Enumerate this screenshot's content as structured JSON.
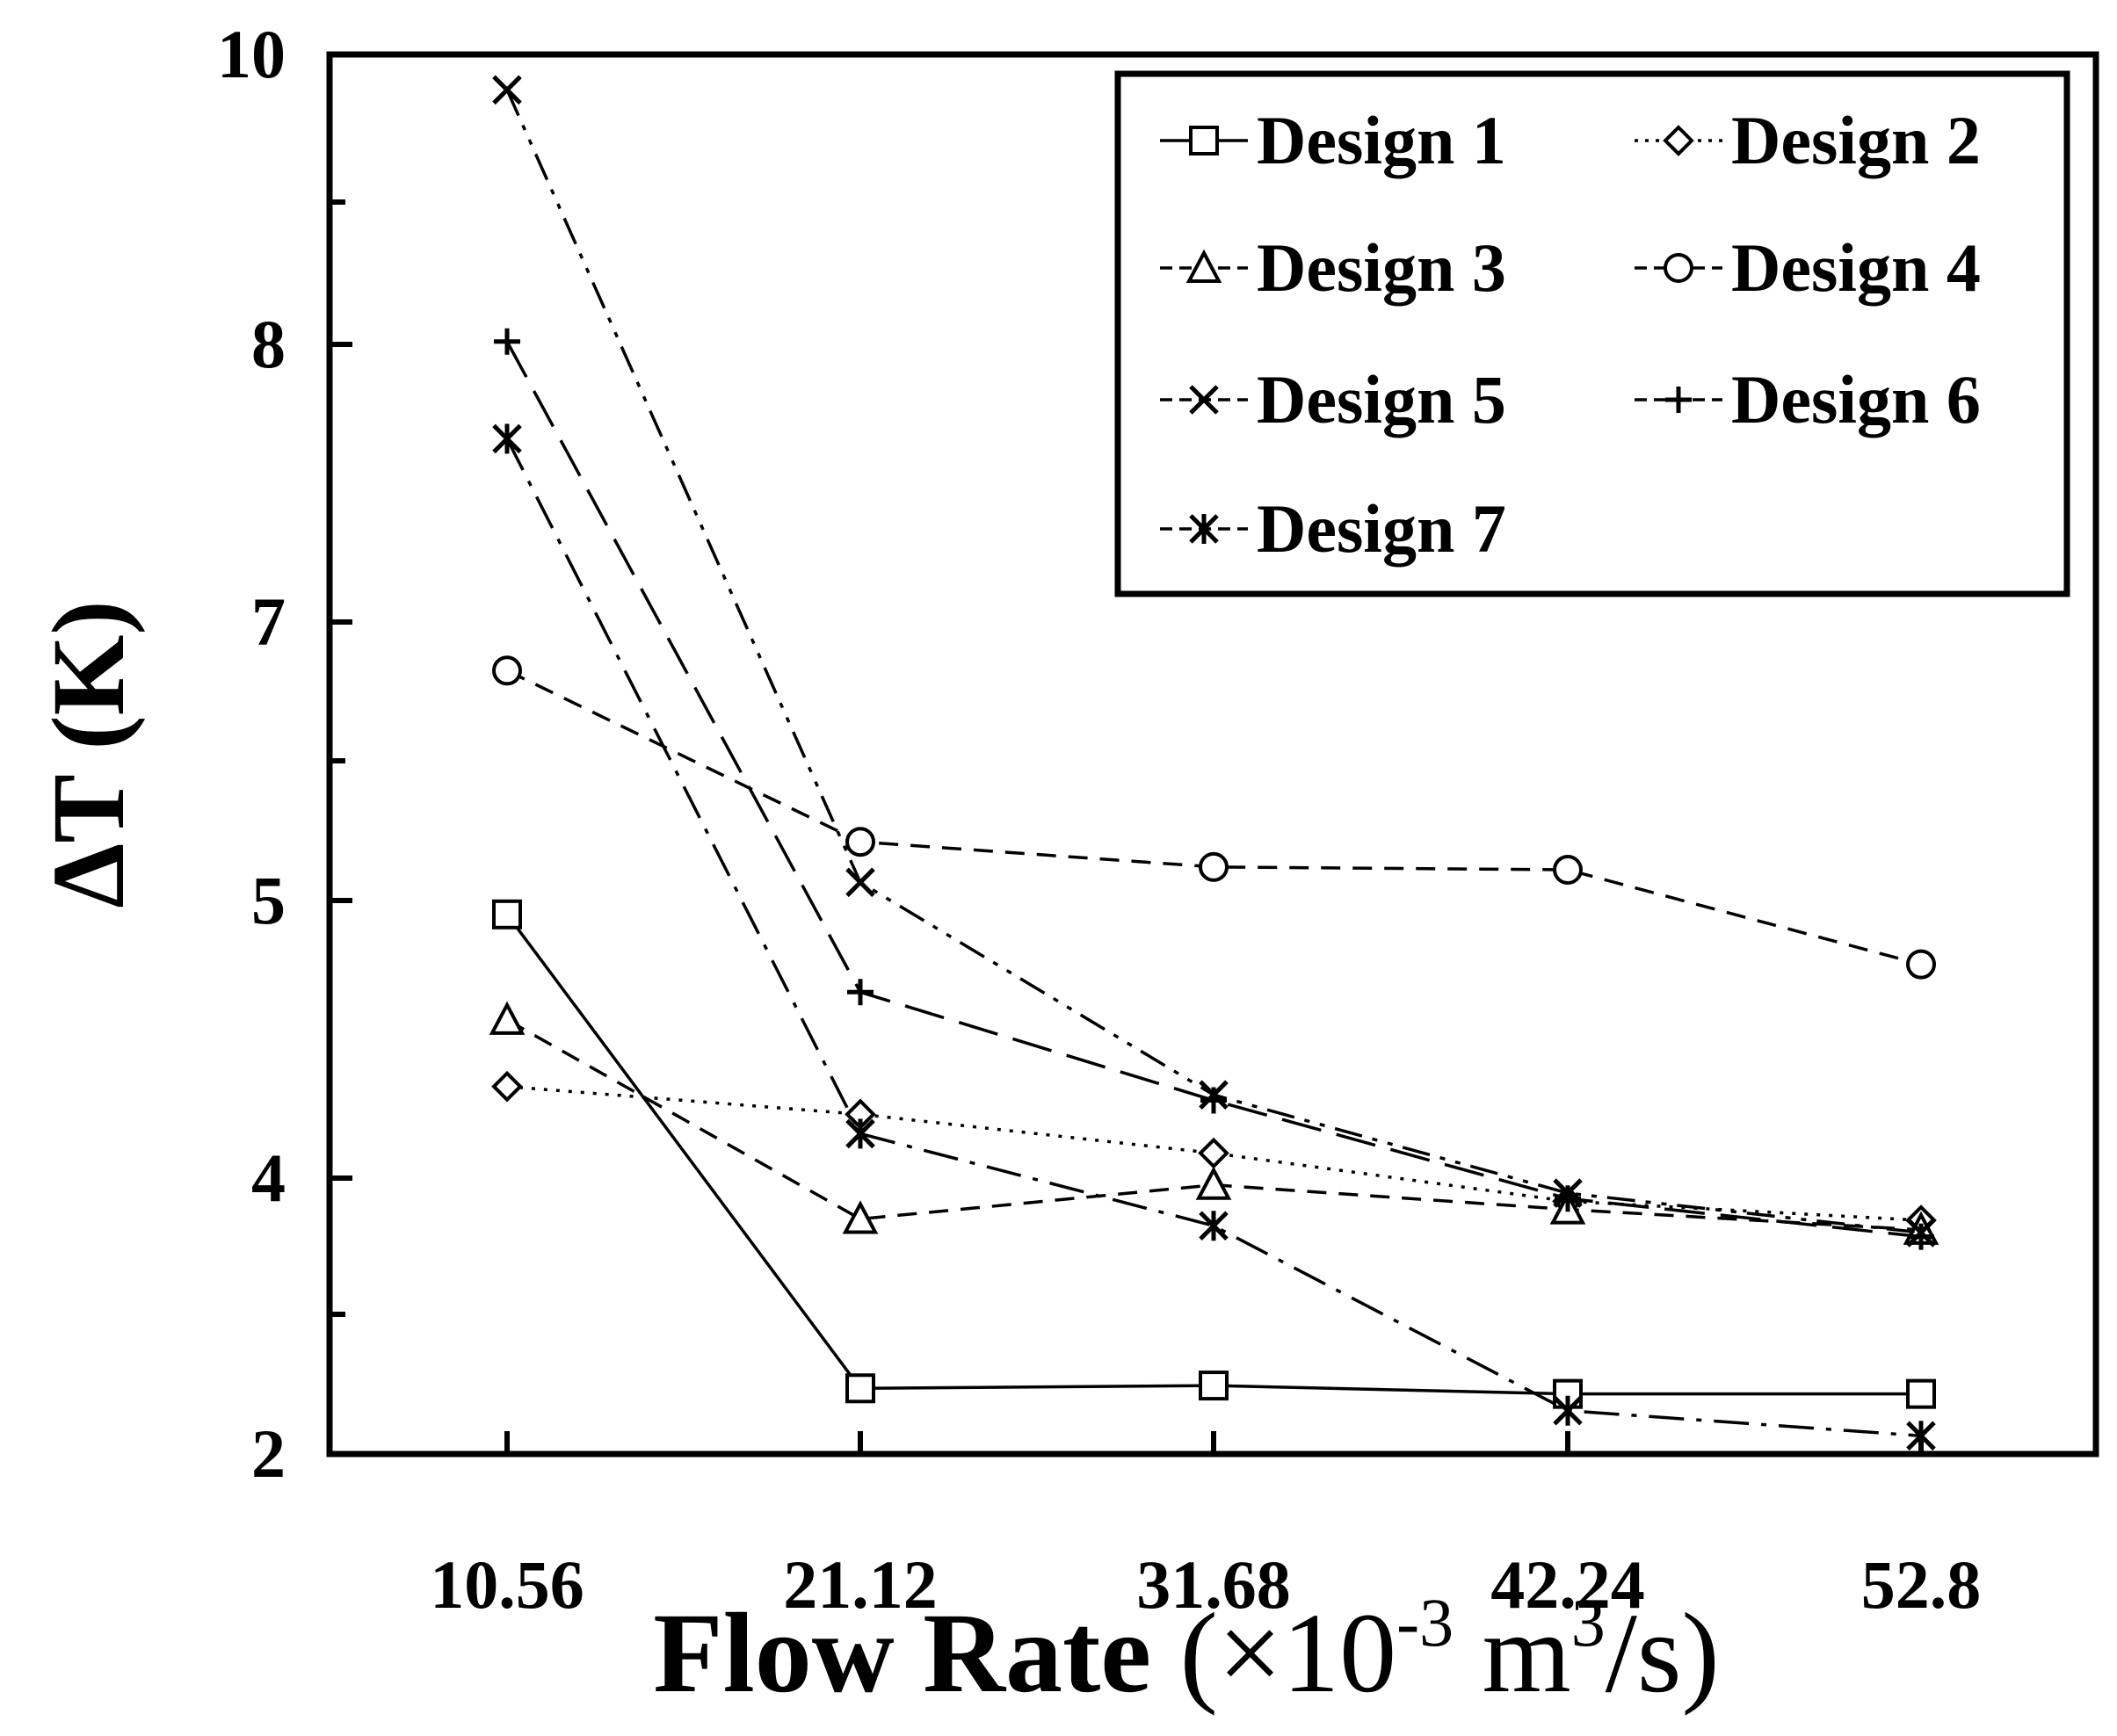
{
  "chart_data": {
    "type": "line",
    "title": "",
    "xlabel": "Flow Rate (×10⁻³ m³/s)",
    "xlabel_parts": {
      "main": "Flow Rate",
      "unit_open": " (×10",
      "unit_exp1": "-3",
      "unit_mid": " m",
      "unit_exp2": "3",
      "unit_close": "/s)"
    },
    "ylabel": "ΔT (K)",
    "categories": [
      "10.56",
      "21.12",
      "31.68",
      "42.24",
      "52.8"
    ],
    "y_ticks": [
      "10",
      "8",
      "7",
      "5",
      "4",
      "2"
    ],
    "y_tick_values": [
      10,
      8,
      7,
      5,
      4,
      2
    ],
    "ylim": [
      2,
      10
    ],
    "legend_position": "top-right",
    "series": [
      {
        "name": "Design 1",
        "marker": "square",
        "dash": "solid",
        "values": [
          4.95,
          2.47,
          2.49,
          2.43,
          2.43
        ]
      },
      {
        "name": "Design 2",
        "marker": "diamond",
        "dash": "dot",
        "values": [
          4.33,
          4.23,
          4.09,
          3.83,
          3.69
        ]
      },
      {
        "name": "Design 3",
        "marker": "triangle",
        "dash": "dash",
        "values": [
          4.57,
          3.7,
          3.95,
          3.77,
          3.62
        ]
      },
      {
        "name": "Design 4",
        "marker": "circle",
        "dash": "dash",
        "values": [
          6.65,
          5.42,
          5.24,
          5.22,
          4.77
        ]
      },
      {
        "name": "Design 5",
        "marker": "x",
        "dash": "dashdotdot",
        "values": [
          9.76,
          5.13,
          4.3,
          3.89,
          3.6
        ]
      },
      {
        "name": "Design 6",
        "marker": "plus",
        "dash": "longdash",
        "values": [
          8.02,
          4.67,
          4.28,
          3.85,
          3.57
        ]
      },
      {
        "name": "Design 7",
        "marker": "asterisk",
        "dash": "dashdot",
        "values": [
          7.66,
          4.16,
          3.65,
          2.31,
          2.13
        ]
      }
    ]
  }
}
